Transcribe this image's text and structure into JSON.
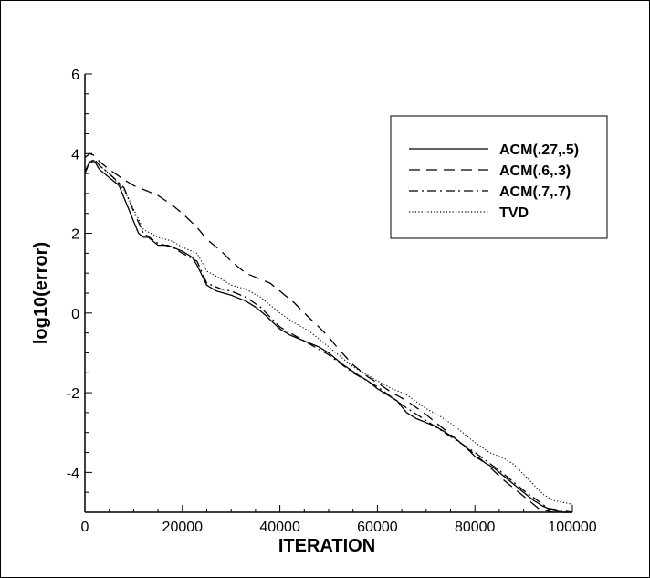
{
  "chart_data": {
    "type": "line",
    "title": "",
    "xlabel": "ITERATION",
    "ylabel": "log10(error)",
    "xlim": [
      0,
      100000
    ],
    "ylim": [
      -5,
      6
    ],
    "xticks": [
      0,
      20000,
      40000,
      60000,
      80000,
      100000
    ],
    "yticks": [
      -4,
      -2,
      0,
      2,
      4,
      6
    ],
    "grid": false,
    "legend_position": "top-right",
    "series": [
      {
        "name": "ACM(.27,.5)",
        "style": "solid",
        "x": [
          0,
          1000,
          2000,
          3000,
          5000,
          7000,
          8000,
          9000,
          10000,
          11000,
          12000,
          13000,
          15000,
          17000,
          20000,
          22000,
          23000,
          25000,
          27000,
          30000,
          33000,
          35000,
          37000,
          40000,
          42000,
          45000,
          48000,
          50000,
          53000,
          56000,
          58000,
          60000,
          62000,
          64000,
          66000,
          68000,
          70000,
          72000,
          74000,
          76000,
          78000,
          80000,
          82000,
          84000,
          86000,
          88000,
          90000,
          92000,
          94000,
          96000,
          98000,
          100000
        ],
        "y": [
          3.5,
          3.8,
          3.8,
          3.6,
          3.4,
          3.2,
          2.9,
          2.6,
          2.3,
          2.0,
          1.9,
          1.9,
          1.7,
          1.7,
          1.55,
          1.4,
          1.2,
          0.7,
          0.55,
          0.45,
          0.3,
          0.15,
          -0.05,
          -0.4,
          -0.55,
          -0.7,
          -0.85,
          -1.0,
          -1.3,
          -1.55,
          -1.7,
          -1.9,
          -2.05,
          -2.2,
          -2.5,
          -2.65,
          -2.75,
          -2.85,
          -3.0,
          -3.15,
          -3.35,
          -3.6,
          -3.75,
          -3.9,
          -4.1,
          -4.3,
          -4.5,
          -4.7,
          -4.85,
          -4.95,
          -5.0,
          -5.0
        ]
      },
      {
        "name": "ACM(.6,.3)",
        "style": "dashed",
        "x": [
          0,
          1000,
          2000,
          3000,
          5000,
          8000,
          10000,
          12000,
          15000,
          18000,
          20000,
          23000,
          25000,
          28000,
          30000,
          33000,
          36000,
          38000,
          40000,
          43000,
          45000,
          48000,
          50000,
          52000,
          55000,
          58000,
          60000,
          63000,
          66000,
          70000,
          74000,
          78000,
          82000,
          86000,
          90000,
          93000,
          96000,
          100000
        ],
        "y": [
          3.9,
          4.0,
          3.95,
          3.8,
          3.6,
          3.35,
          3.2,
          3.1,
          2.95,
          2.7,
          2.5,
          2.15,
          1.85,
          1.55,
          1.3,
          1.0,
          0.85,
          0.75,
          0.55,
          0.25,
          0.0,
          -0.35,
          -0.6,
          -0.9,
          -1.3,
          -1.6,
          -1.75,
          -2.0,
          -2.2,
          -2.55,
          -2.95,
          -3.35,
          -3.75,
          -4.2,
          -4.6,
          -4.9,
          -5.0,
          -5.0
        ]
      },
      {
        "name": "ACM(.7,.7)",
        "style": "dashdot",
        "x": [
          0,
          1000,
          2000,
          3000,
          5000,
          8000,
          10000,
          12000,
          15000,
          18000,
          20000,
          23000,
          25000,
          28000,
          30000,
          33000,
          36000,
          40000,
          45000,
          50000,
          55000,
          60000,
          65000,
          70000,
          75000,
          80000,
          85000,
          90000,
          95000,
          100000
        ],
        "y": [
          3.55,
          3.8,
          3.85,
          3.7,
          3.5,
          3.15,
          2.55,
          2.0,
          1.75,
          1.65,
          1.5,
          1.3,
          0.75,
          0.6,
          0.55,
          0.4,
          0.15,
          -0.35,
          -0.7,
          -1.05,
          -1.5,
          -1.85,
          -2.3,
          -2.7,
          -3.1,
          -3.5,
          -3.95,
          -4.45,
          -4.9,
          -5.0
        ]
      },
      {
        "name": "TVD",
        "style": "dotted",
        "x": [
          0,
          1000,
          2000,
          3000,
          5000,
          8000,
          10000,
          12000,
          15000,
          18000,
          20000,
          23000,
          25000,
          28000,
          30000,
          33000,
          36000,
          40000,
          43000,
          46000,
          50000,
          55000,
          60000,
          63000,
          66000,
          70000,
          73000,
          76000,
          80000,
          83000,
          86000,
          88000,
          90000,
          92000,
          94000,
          96000,
          98000,
          100000
        ],
        "y": [
          3.6,
          3.75,
          3.85,
          3.7,
          3.5,
          3.1,
          2.6,
          2.1,
          1.9,
          1.8,
          1.65,
          1.5,
          1.05,
          0.85,
          0.7,
          0.6,
          0.4,
          0.0,
          -0.25,
          -0.45,
          -0.85,
          -1.35,
          -1.7,
          -1.9,
          -2.05,
          -2.4,
          -2.6,
          -2.85,
          -3.25,
          -3.5,
          -3.65,
          -3.8,
          -4.05,
          -4.3,
          -4.55,
          -4.7,
          -4.75,
          -4.8
        ]
      }
    ]
  }
}
